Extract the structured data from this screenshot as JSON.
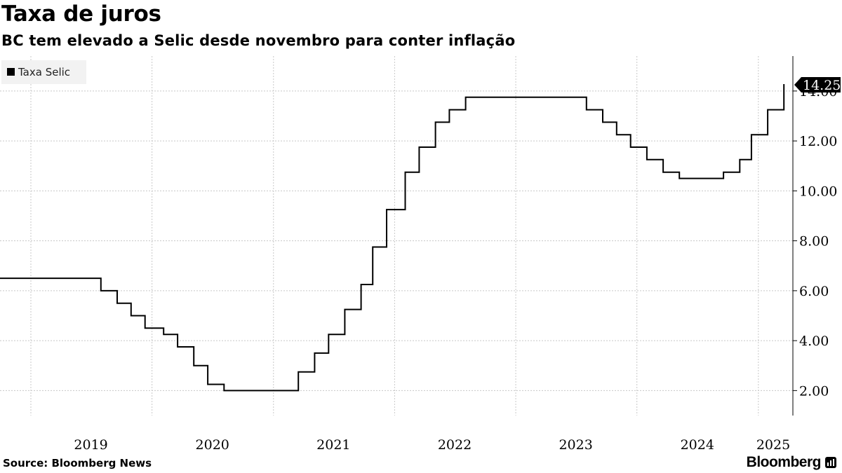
{
  "title": "Taxa de juros",
  "subtitle": "BC tem elevado a Selic desde novembro para conter inflação",
  "source": "Source: Bloomberg News",
  "brand": "Bloomberg",
  "chart_data": {
    "type": "line",
    "step": true,
    "series": [
      {
        "name": "Taxa Selic",
        "color": "#000000",
        "points": [
          [
            "2018-09-30",
            6.5
          ],
          [
            "2019-07-31",
            6.0
          ],
          [
            "2019-09-18",
            5.5
          ],
          [
            "2019-10-30",
            5.0
          ],
          [
            "2019-12-11",
            4.5
          ],
          [
            "2020-02-05",
            4.25
          ],
          [
            "2020-03-18",
            3.75
          ],
          [
            "2020-05-06",
            3.0
          ],
          [
            "2020-06-17",
            2.25
          ],
          [
            "2020-08-05",
            2.0
          ],
          [
            "2021-03-17",
            2.75
          ],
          [
            "2021-05-05",
            3.5
          ],
          [
            "2021-06-16",
            4.25
          ],
          [
            "2021-08-04",
            5.25
          ],
          [
            "2021-09-22",
            6.25
          ],
          [
            "2021-10-27",
            7.75
          ],
          [
            "2021-12-08",
            9.25
          ],
          [
            "2022-02-02",
            10.75
          ],
          [
            "2022-03-16",
            11.75
          ],
          [
            "2022-05-04",
            12.75
          ],
          [
            "2022-06-15",
            13.25
          ],
          [
            "2022-08-03",
            13.75
          ],
          [
            "2023-08-02",
            13.25
          ],
          [
            "2023-09-20",
            12.75
          ],
          [
            "2023-11-01",
            12.25
          ],
          [
            "2023-12-13",
            11.75
          ],
          [
            "2024-01-31",
            11.25
          ],
          [
            "2024-03-20",
            10.75
          ],
          [
            "2024-05-08",
            10.5
          ],
          [
            "2024-09-18",
            10.75
          ],
          [
            "2024-11-06",
            11.25
          ],
          [
            "2024-12-11",
            12.25
          ],
          [
            "2025-01-29",
            13.25
          ],
          [
            "2025-03-19",
            14.25
          ],
          [
            "2025-03-21",
            14.25
          ]
        ]
      }
    ],
    "last_value_label": "14.25",
    "x_ticks": [
      "2019",
      "2020",
      "2021",
      "2022",
      "2023",
      "2024",
      "2025"
    ],
    "y_ticks": [
      "2.00",
      "4.00",
      "6.00",
      "8.00",
      "10.00",
      "12.00",
      "14.00"
    ],
    "ylim": [
      1.0,
      15.4
    ],
    "xlim": [
      "2018-09-30",
      "2025-04-15"
    ],
    "grid": true,
    "legend_position": "top-left"
  }
}
